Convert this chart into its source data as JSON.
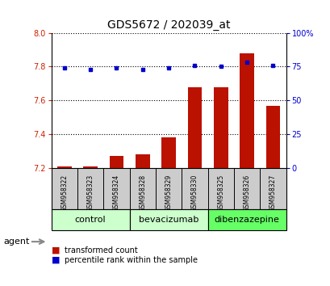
{
  "title": "GDS5672 / 202039_at",
  "samples": [
    "GSM958322",
    "GSM958323",
    "GSM958324",
    "GSM958328",
    "GSM958329",
    "GSM958330",
    "GSM958325",
    "GSM958326",
    "GSM958327"
  ],
  "transformed_count": [
    7.21,
    7.21,
    7.27,
    7.28,
    7.38,
    7.68,
    7.68,
    7.88,
    7.57
  ],
  "percentile_rank": [
    74,
    73,
    74,
    73,
    74,
    76,
    75,
    78,
    76
  ],
  "baseline": 7.2,
  "ylim_left": [
    7.2,
    8.0
  ],
  "ylim_right": [
    0,
    100
  ],
  "yticks_left": [
    7.2,
    7.4,
    7.6,
    7.8,
    8.0
  ],
  "yticks_right": [
    0,
    25,
    50,
    75,
    100
  ],
  "ytick_labels_right": [
    "0",
    "25",
    "50",
    "75",
    "100%"
  ],
  "boundaries": [
    {
      "start": 0,
      "end": 2,
      "label": "control",
      "color": "#ccffcc"
    },
    {
      "start": 3,
      "end": 5,
      "label": "bevacizumab",
      "color": "#ccffcc"
    },
    {
      "start": 6,
      "end": 8,
      "label": "dibenzazepine",
      "color": "#66ff66"
    }
  ],
  "bar_color": "#bb1100",
  "dot_color": "#0000cc",
  "grid_linestyle": "dotted",
  "grid_linewidth": 0.8,
  "tick_color_left": "#cc2200",
  "tick_color_right": "#0000cc",
  "bg_color": "#ffffff",
  "sample_box_color": "#cccccc",
  "agent_label": "agent",
  "legend_items": [
    {
      "label": "transformed count",
      "color": "#bb1100"
    },
    {
      "label": "percentile rank within the sample",
      "color": "#0000cc"
    }
  ],
  "title_fontsize": 10,
  "tick_fontsize": 7,
  "sample_fontsize": 5.5,
  "group_fontsize": 8,
  "legend_fontsize": 7
}
